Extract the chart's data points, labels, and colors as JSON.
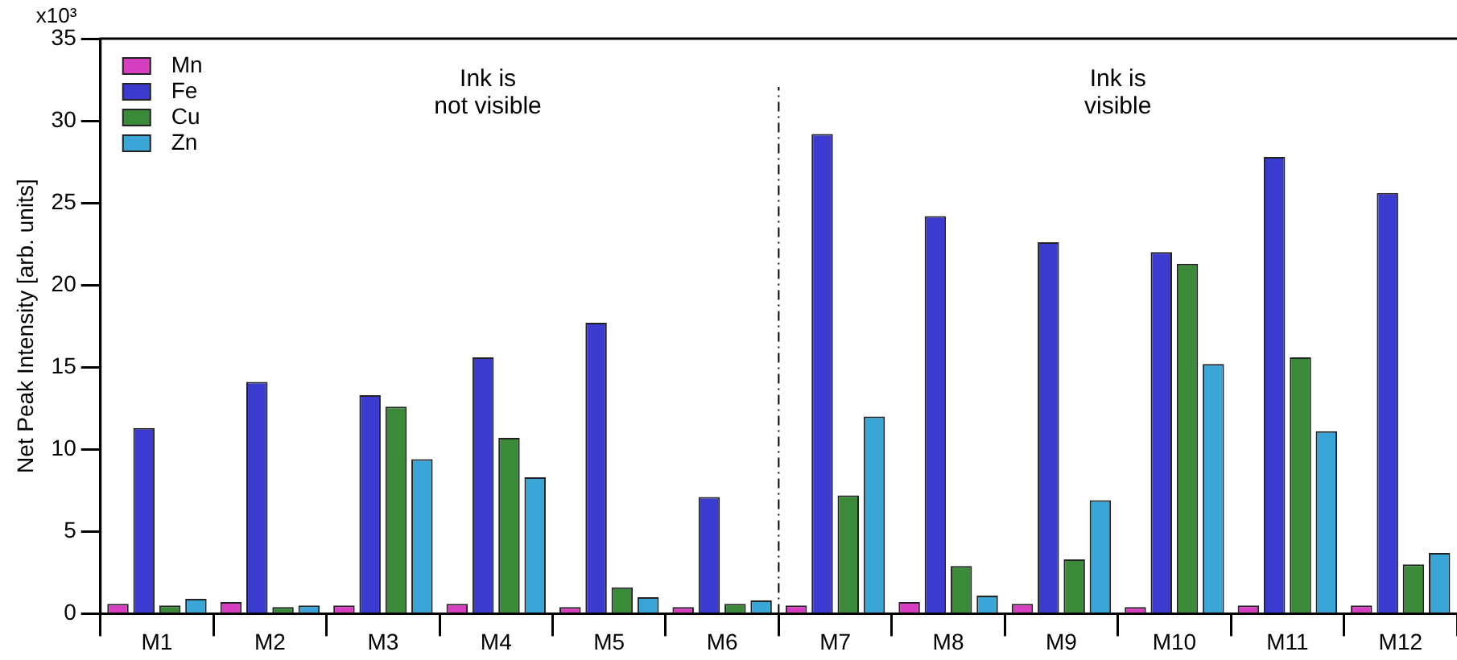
{
  "chart_data": {
    "type": "bar",
    "ylabel": "Net Peak Intensity [arb. units]",
    "categories": [
      "M1",
      "M2",
      "M3",
      "M4",
      "M5",
      "M6",
      "M7",
      "M8",
      "M9",
      "M10",
      "M11",
      "M12"
    ],
    "series": [
      {
        "name": "Mn",
        "color": "#d63fbf",
        "values": [
          0.6,
          0.7,
          0.5,
          0.6,
          0.4,
          0.4,
          0.5,
          0.7,
          0.6,
          0.4,
          0.5,
          0.5
        ]
      },
      {
        "name": "Fe",
        "color": "#3b3bd0",
        "values": [
          11.3,
          14.1,
          13.3,
          15.6,
          17.7,
          7.1,
          29.2,
          24.2,
          22.6,
          22.0,
          27.8,
          25.6
        ]
      },
      {
        "name": "Cu",
        "color": "#3a8a3a",
        "values": [
          0.5,
          0.4,
          12.6,
          10.7,
          1.6,
          0.6,
          7.2,
          2.9,
          3.3,
          21.3,
          15.6,
          3.0
        ]
      },
      {
        "name": "Zn",
        "color": "#3aa6d8",
        "values": [
          0.9,
          0.5,
          9.4,
          8.3,
          1.0,
          0.8,
          12.0,
          1.1,
          6.9,
          15.2,
          11.1,
          3.7
        ]
      }
    ],
    "ylim": [
      0,
      35
    ],
    "yticks": [
      0,
      5,
      10,
      15,
      20,
      25,
      30,
      35
    ],
    "grid": false,
    "legend": "top left",
    "annotations": [
      "Ink is\nnot visible",
      "Ink is\nvisible",
      "x10³"
    ]
  }
}
